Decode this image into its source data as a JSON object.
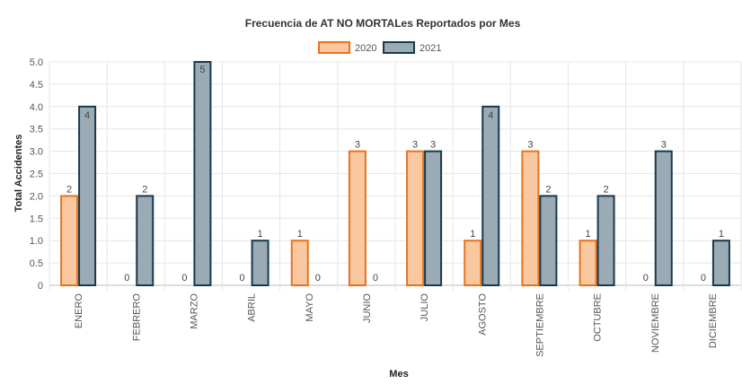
{
  "chart_data": {
    "type": "bar",
    "title": "Frecuencia de AT NO MORTALes Reportados por Mes",
    "xlabel": "Mes",
    "ylabel": "Total Accidentes",
    "ylim": [
      0,
      5
    ],
    "yticks": [
      "0",
      "0.5",
      "1.0",
      "1.5",
      "2.0",
      "2.5",
      "3.0",
      "3.5",
      "4.0",
      "4.5",
      "5.0"
    ],
    "grid": true,
    "legend_position": "top",
    "categories": [
      "ENERO",
      "FEBRERO",
      "MARZO",
      "ABRIL",
      "MAYO",
      "JUNIO",
      "JULIO",
      "AGOSTO",
      "SEPTIEMBRE",
      "OCTUBRE",
      "NOVIEMBRE",
      "DICIEMBRE"
    ],
    "series": [
      {
        "name": "2020",
        "values": [
          2,
          0,
          0,
          0,
          1,
          3,
          3,
          1,
          3,
          1,
          0,
          0
        ],
        "fill": "#f9c7a0",
        "stroke": "#e8731f"
      },
      {
        "name": "2021",
        "values": [
          4,
          2,
          5,
          1,
          0,
          0,
          3,
          4,
          2,
          2,
          3,
          1
        ],
        "fill": "#9aabb5",
        "stroke": "#173a4d"
      }
    ]
  }
}
